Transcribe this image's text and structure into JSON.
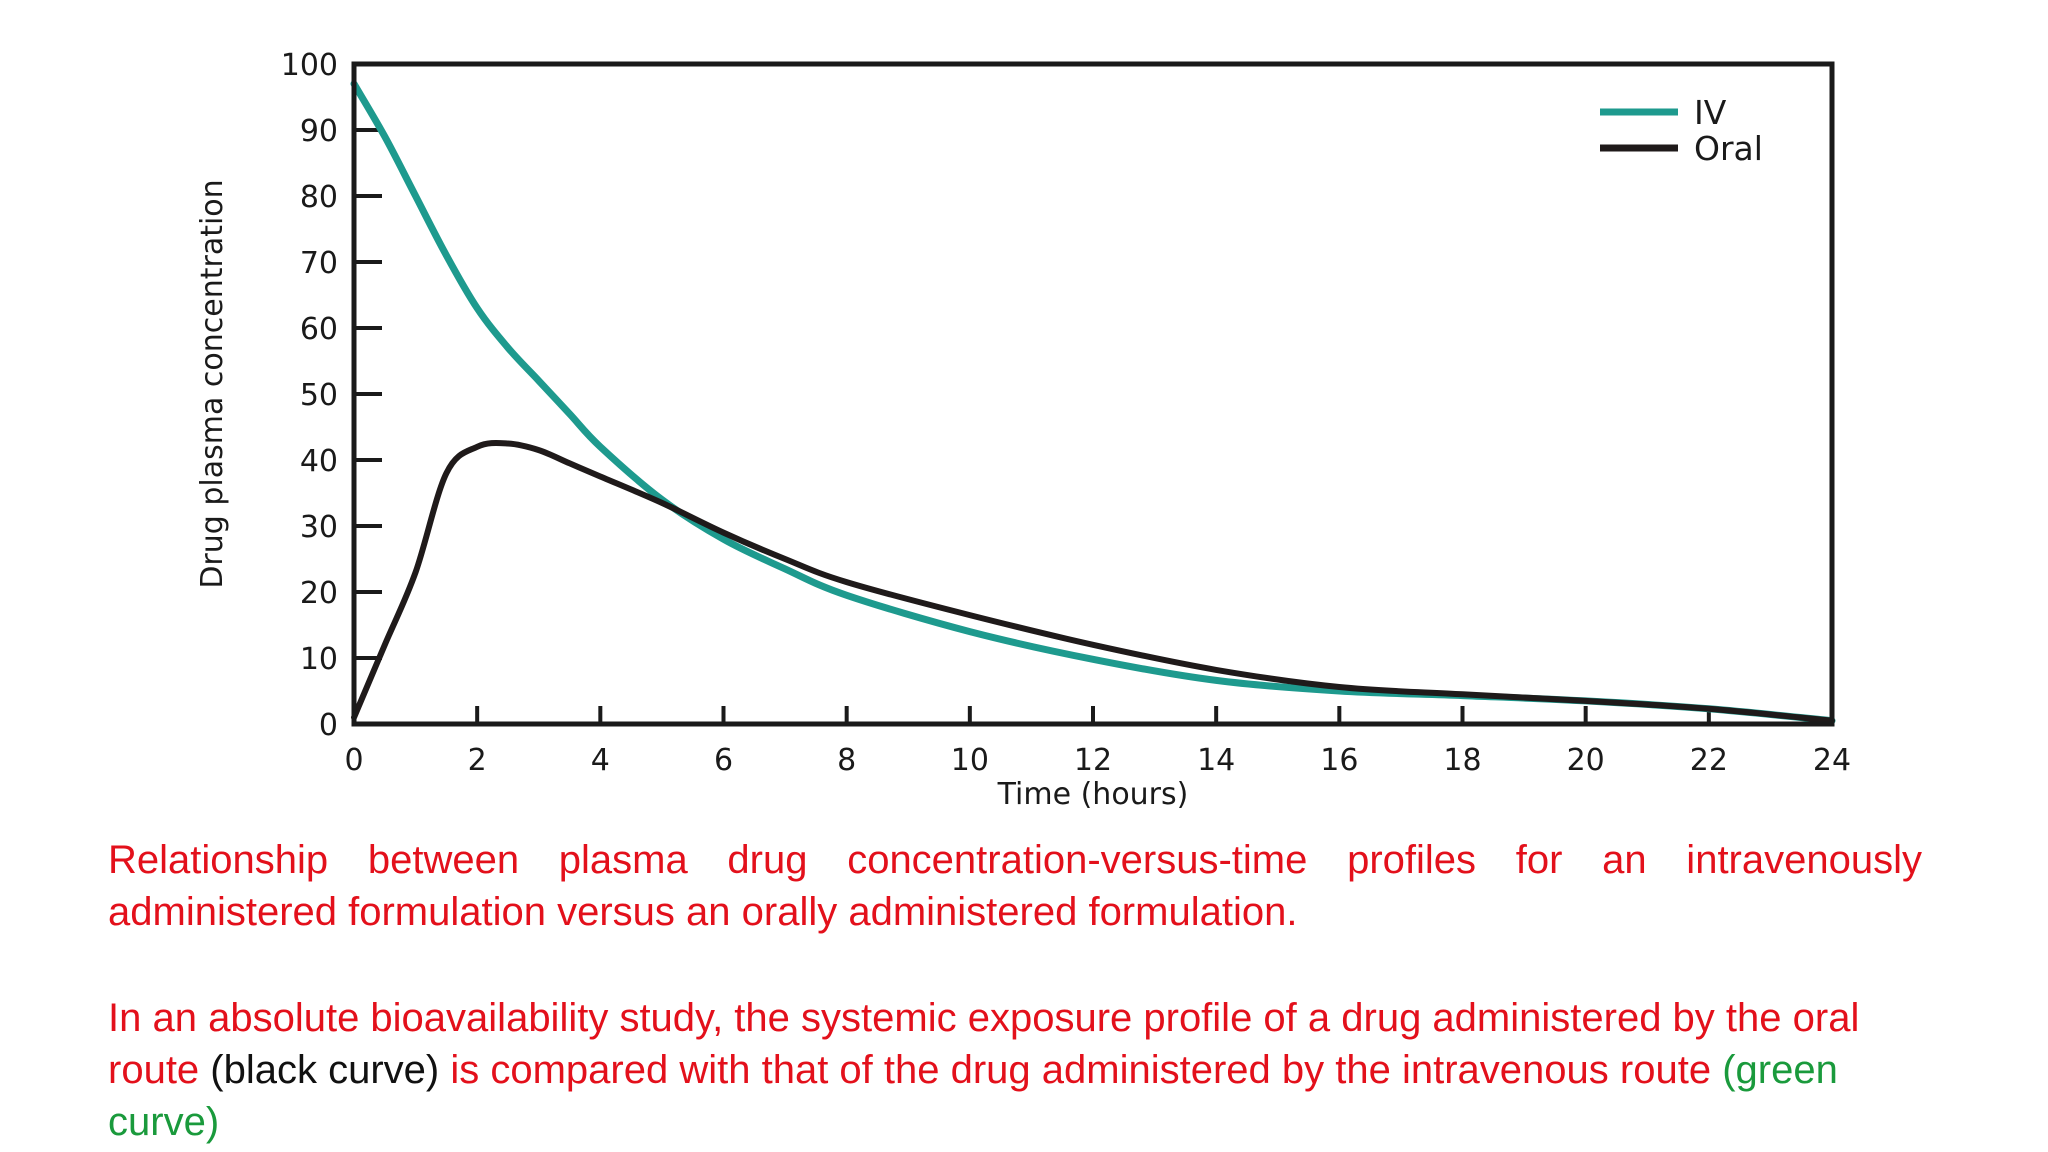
{
  "colors": {
    "iv": "#1e9a8e",
    "oral": "#1f1a1a",
    "caption": "#e3101b",
    "black_note": "#111111",
    "green_note": "#1a9a3c"
  },
  "chart_data": {
    "type": "line",
    "title": "",
    "xlabel": "Time (hours)",
    "ylabel": "Drug plasma concentration",
    "xlim": [
      0,
      24
    ],
    "ylim": [
      0,
      100
    ],
    "xticks": [
      "0",
      "2",
      "4",
      "6",
      "8",
      "10",
      "12",
      "14",
      "16",
      "18",
      "20",
      "22",
      "24"
    ],
    "yticks": [
      "0",
      "10",
      "20",
      "30",
      "40",
      "50",
      "60",
      "70",
      "80",
      "90",
      "100"
    ],
    "grid": false,
    "legend_position": "top-right",
    "series": [
      {
        "name": "IV",
        "color_key": "iv",
        "x": [
          0,
          0.5,
          1,
          1.5,
          2,
          2.5,
          3,
          3.5,
          4,
          5,
          6,
          7,
          8,
          10,
          12,
          14,
          16,
          18,
          20,
          22,
          24
        ],
        "y": [
          97,
          89,
          80,
          71,
          63,
          57,
          52,
          47,
          42,
          34,
          28,
          23.5,
          19.5,
          14,
          9.8,
          6.6,
          5,
          4.3,
          3.5,
          2.3,
          0.5
        ]
      },
      {
        "name": "Oral",
        "color_key": "oral",
        "x": [
          0,
          0.5,
          1,
          1.5,
          2,
          2.5,
          3,
          3.5,
          4,
          5,
          6,
          7,
          8,
          10,
          12,
          14,
          16,
          18,
          20,
          22,
          24
        ],
        "y": [
          1,
          12,
          23,
          38,
          42,
          42.5,
          41.5,
          39.5,
          37.5,
          33.5,
          29,
          25,
          21.5,
          16.5,
          12,
          8.2,
          5.6,
          4.5,
          3.5,
          2.3,
          0.5
        ]
      }
    ]
  },
  "caption": {
    "paragraph1": "Relationship between plasma drug concentration-versus-time profiles for an intravenously administered formulation versus an orally administered formulation.",
    "p2_part1": "In an absolute bioavailability study, the systemic exposure profile of a drug administered by the oral route ",
    "p2_black": "(black curve)",
    "p2_part2": " is compared with that of the drug administered by the intravenous route ",
    "p2_green": "(green curve)"
  }
}
